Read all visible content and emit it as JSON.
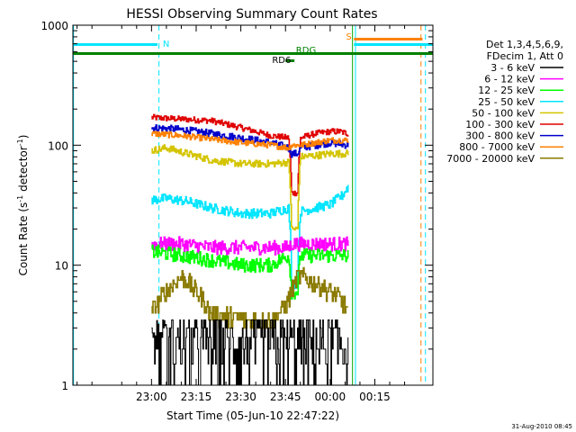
{
  "chart_data": {
    "type": "line",
    "title": "HESSI Observing Summary Count Rates",
    "xlabel": "Start Time (05-Jun-10 22:47:22)",
    "ylabel_main": "Count Rate (s",
    "ylabel_sup1": "-1",
    "ylabel_mid": " detector",
    "ylabel_sup2": "-1",
    "ylabel_end": ")",
    "y_scale": "log",
    "ylim": [
      1,
      1000
    ],
    "xlim_minutes": [
      -26.4,
      94.5
    ],
    "x_tick_labels": [
      "23:00",
      "23:15",
      "23:30",
      "23:45",
      "00:00",
      "00:15"
    ],
    "x_tick_minutes": [
      0,
      15,
      30,
      45,
      60,
      75
    ],
    "y_tick_labels": [
      "1",
      "10",
      "100",
      "1000"
    ],
    "y_tick_values": [
      1,
      10,
      100,
      1000
    ],
    "legend": {
      "header1": "Det 1,3,4,5,6,9,",
      "header2": "FDecim 1, Att 0",
      "entries": [
        {
          "label": "3 - 6 keV",
          "color": "#000000"
        },
        {
          "label": "6 - 12 keV",
          "color": "#ff00ff"
        },
        {
          "label": "12 - 25 keV",
          "color": "#00ff00"
        },
        {
          "label": "25 - 50 keV",
          "color": "#00e5ff"
        },
        {
          "label": "50 - 100 keV",
          "color": "#d4c400"
        },
        {
          "label": "100 - 300 keV",
          "color": "#e00000"
        },
        {
          "label": "300 - 800 keV",
          "color": "#0000cc"
        },
        {
          "label": "800 - 7000 keV",
          "color": "#ff8000"
        },
        {
          "label": "7000 - 20000 keV",
          "color": "#8a7a00"
        }
      ]
    },
    "annotations": {
      "N": "N",
      "S": "S",
      "RD1": "RDG",
      "RD2": "RD6"
    },
    "series": [
      {
        "name": "100 - 300 keV",
        "color": "#e00000",
        "x": [
          0,
          10,
          20,
          30,
          40,
          46,
          47,
          49,
          50,
          55,
          60,
          63,
          66
        ],
        "y": [
          170,
          165,
          160,
          140,
          120,
          115,
          40,
          40,
          115,
          125,
          130,
          130,
          125
        ]
      },
      {
        "name": "300 - 800 keV",
        "color": "#0000cc",
        "x": [
          0,
          10,
          20,
          30,
          40,
          46,
          47,
          49,
          50,
          55,
          60,
          66
        ],
        "y": [
          140,
          135,
          125,
          115,
          105,
          95,
          85,
          85,
          95,
          100,
          105,
          100
        ]
      },
      {
        "name": "800 - 7000 keV",
        "color": "#ff8000",
        "x": [
          0,
          10,
          20,
          30,
          40,
          46,
          47,
          49,
          50,
          55,
          60,
          66
        ],
        "y": [
          125,
          120,
          112,
          105,
          100,
          95,
          100,
          100,
          100,
          105,
          110,
          110
        ]
      },
      {
        "name": "50 - 100 keV",
        "color": "#d4c400",
        "x": [
          0,
          5,
          12,
          20,
          30,
          40,
          46,
          47,
          49,
          50,
          55,
          60,
          66
        ],
        "y": [
          90,
          95,
          85,
          75,
          70,
          70,
          72,
          20,
          20,
          80,
          82,
          85,
          85
        ]
      },
      {
        "name": "25 - 50 keV",
        "color": "#00e5ff",
        "x": [
          0,
          5,
          12,
          20,
          30,
          40,
          46,
          47,
          49,
          50,
          55,
          60,
          64,
          66
        ],
        "y": [
          35,
          36,
          34,
          30,
          27,
          27,
          30,
          7,
          7,
          28,
          30,
          32,
          38,
          45
        ]
      },
      {
        "name": "6 - 12 keV",
        "color": "#ff00ff",
        "x": [
          0,
          10,
          20,
          30,
          40,
          46,
          47,
          49,
          50,
          55,
          60,
          66
        ],
        "y": [
          15,
          15,
          14,
          14,
          14,
          14,
          15,
          15,
          15,
          15,
          15,
          15
        ]
      },
      {
        "name": "12 - 25 keV",
        "color": "#00ff00",
        "x": [
          0,
          10,
          20,
          30,
          40,
          46,
          47,
          49,
          50,
          55,
          60,
          66
        ],
        "y": [
          13,
          12,
          11,
          10,
          10,
          12,
          6,
          6,
          12,
          12,
          12,
          12
        ]
      },
      {
        "name": "7000 - 20000 keV",
        "color": "#8a7a00",
        "x": [
          0,
          5,
          10,
          15,
          20,
          30,
          40,
          45,
          47,
          49,
          51,
          55,
          60,
          64,
          66
        ],
        "y": [
          4,
          6,
          8,
          6,
          4,
          3.5,
          3.5,
          4.5,
          6,
          8,
          8,
          7,
          6,
          5,
          4
        ]
      },
      {
        "name": "3 - 6 keV",
        "color": "#000000",
        "x": [
          0,
          5,
          10,
          15,
          20,
          30,
          40,
          45,
          50,
          55,
          60,
          66
        ],
        "y": [
          2.5,
          3,
          3.5,
          2.5,
          1.8,
          1.5,
          1.6,
          2.5,
          3,
          2.5,
          2.2,
          2
        ]
      }
    ],
    "status_bars": {
      "cyan_left": {
        "color": "#00e5ff",
        "x": [
          -26.4,
          2
        ]
      },
      "green_full": {
        "color": "#008000",
        "x": [
          -26.4,
          94.5
        ]
      },
      "orange_right": {
        "color": "#ff8000",
        "x": [
          68,
          91
        ]
      },
      "cyan_right": {
        "color": "#00e5ff",
        "x": [
          68,
          94.5
        ]
      },
      "rdg_bar": {
        "color": "#008000",
        "x": [
          48,
          53
        ]
      },
      "rd6_bar": {
        "color": "#008000",
        "x": [
          45,
          48
        ]
      }
    },
    "vertical_markers": [
      {
        "color": "#00e5ff",
        "x": 2.5,
        "style": "dashed"
      },
      {
        "color": "#00aa00",
        "x": 67.5,
        "style": "solid"
      },
      {
        "color": "#00e5ff",
        "x": 68.5,
        "style": "solid"
      },
      {
        "color": "#ff8000",
        "x": 90.5,
        "style": "dashed"
      },
      {
        "color": "#00e5ff",
        "x": 92,
        "style": "dashed"
      },
      {
        "color": "#00e5ff",
        "x": -26.2,
        "style": "solid"
      }
    ]
  },
  "footer": {
    "timestamp": "31-Aug-2010 08:45"
  }
}
